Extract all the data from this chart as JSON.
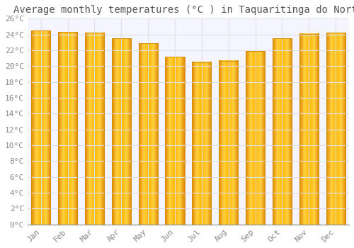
{
  "title": "Average monthly temperatures (°C ) in Taquaritinga do Norte",
  "months": [
    "Jan",
    "Feb",
    "Mar",
    "Apr",
    "May",
    "Jun",
    "Jul",
    "Aug",
    "Sep",
    "Oct",
    "Nov",
    "Dec"
  ],
  "values": [
    24.5,
    24.3,
    24.2,
    23.5,
    22.9,
    21.2,
    20.5,
    20.7,
    21.9,
    23.5,
    24.1,
    24.2
  ],
  "bar_color_light": "#FFD966",
  "bar_color_mid": "#FFAA00",
  "bar_color_dark": "#E08000",
  "bar_edge_color": "#CC8800",
  "background_color": "#FFFFFF",
  "plot_bg_color": "#F5F5FF",
  "grid_color": "#E0E0E8",
  "ylim": [
    0,
    26
  ],
  "ytick_step": 2,
  "title_fontsize": 10,
  "tick_fontsize": 8,
  "font_family": "monospace"
}
